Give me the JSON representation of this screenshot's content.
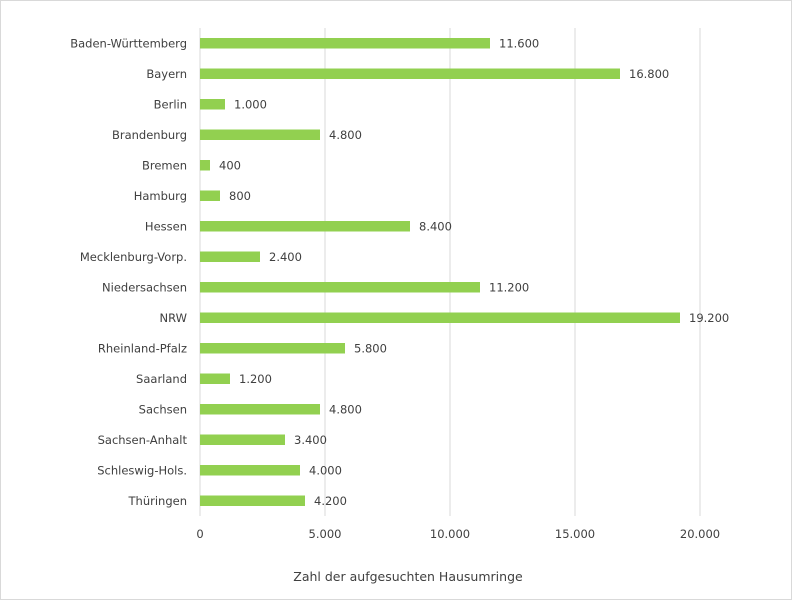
{
  "chart_data": {
    "type": "bar",
    "orientation": "horizontal",
    "categories": [
      "Baden-Württemberg",
      "Bayern",
      "Berlin",
      "Brandenburg",
      "Bremen",
      "Hamburg",
      "Hessen",
      "Mecklenburg-Vorp.",
      "Niedersachsen",
      "NRW",
      "Rheinland-Pfalz",
      "Saarland",
      "Sachsen",
      "Sachsen-Anhalt",
      "Schleswig-Hols.",
      "Thüringen"
    ],
    "values": [
      11600,
      16800,
      1000,
      4800,
      400,
      800,
      8400,
      2400,
      11200,
      19200,
      5800,
      1200,
      4800,
      3400,
      4000,
      4200
    ],
    "value_labels": [
      "11.600",
      "16.800",
      "1.000",
      "4.800",
      "400",
      "800",
      "8.400",
      "2.400",
      "11.200",
      "19.200",
      "5.800",
      "1.200",
      "4.800",
      "3.400",
      "4.000",
      "4.200"
    ],
    "xticks": [
      0,
      5000,
      10000,
      15000,
      20000
    ],
    "xtick_labels": [
      "0",
      "5.000",
      "10.000",
      "15.000",
      "20.000"
    ],
    "xlim": [
      0,
      20000
    ],
    "title": "",
    "xlabel": "Zahl der aufgesuchten Hausumringe",
    "ylabel": "",
    "grid": "vertical",
    "legend": "none",
    "colors": {
      "bar": "#92d050",
      "grid": "#d9d9d9",
      "text": "#404040"
    }
  }
}
